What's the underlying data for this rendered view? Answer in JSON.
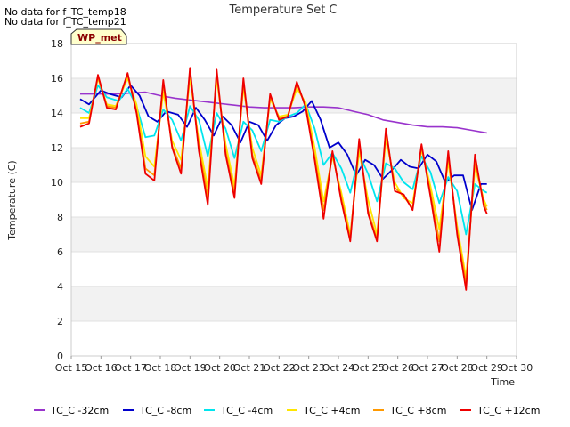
{
  "messages": [
    "No data for f_TC_temp18",
    "No data for f_TC_temp21"
  ],
  "badge": "WP_met",
  "chart_data": {
    "type": "line",
    "title": "Temperature Set C",
    "xlabel": "Time",
    "ylabel": "Temperature (C)",
    "ylim": [
      0,
      18
    ],
    "yticks": [
      0,
      2,
      4,
      6,
      8,
      10,
      12,
      14,
      16,
      18
    ],
    "xlim": [
      15,
      30
    ],
    "xticks": [
      15,
      16,
      17,
      18,
      19,
      20,
      21,
      22,
      23,
      24,
      25,
      26,
      27,
      28,
      29,
      30
    ],
    "xtick_labels": [
      "Oct 15",
      "Oct 16",
      "Oct 17",
      "Oct 18",
      "Oct 19",
      "Oct 20",
      "Oct 21",
      "Oct 22",
      "Oct 23",
      "Oct 24",
      "Oct 25",
      "Oct 26",
      "Oct 27",
      "Oct 28",
      "Oct 29",
      "Oct 30"
    ],
    "grid": "horizontal bands",
    "legend_position": "bottom",
    "series": [
      {
        "name": "TC_C -32cm",
        "color": "#9933cc",
        "x": [
          15.3,
          16,
          16.5,
          17,
          17.5,
          18,
          18.5,
          19,
          19.5,
          20,
          20.5,
          21,
          21.5,
          22,
          22.5,
          23,
          23.5,
          24,
          24.5,
          25,
          25.5,
          26,
          26.5,
          27,
          27.5,
          28,
          28.5,
          29.0
        ],
        "y": [
          15.1,
          15.1,
          15.1,
          15.15,
          15.2,
          15.0,
          14.85,
          14.75,
          14.65,
          14.55,
          14.45,
          14.35,
          14.3,
          14.3,
          14.3,
          14.35,
          14.35,
          14.3,
          14.1,
          13.9,
          13.6,
          13.45,
          13.3,
          13.2,
          13.2,
          13.15,
          13.0,
          12.85
        ]
      },
      {
        "name": "TC_C -8cm",
        "color": "#0000cc",
        "x": [
          15.3,
          15.6,
          16.0,
          16.3,
          16.7,
          17.0,
          17.3,
          17.6,
          17.9,
          18.2,
          18.6,
          18.9,
          19.2,
          19.5,
          19.8,
          20.1,
          20.4,
          20.7,
          21.0,
          21.3,
          21.6,
          21.9,
          22.2,
          22.5,
          22.8,
          23.1,
          23.4,
          23.7,
          24.0,
          24.3,
          24.6,
          24.9,
          25.2,
          25.5,
          25.8,
          26.1,
          26.4,
          26.7,
          27.0,
          27.3,
          27.6,
          27.9,
          28.2,
          28.5,
          28.8,
          29.0
        ],
        "y": [
          14.8,
          14.5,
          15.3,
          15.1,
          14.9,
          15.6,
          15.0,
          13.8,
          13.5,
          14.1,
          13.9,
          13.2,
          14.3,
          13.6,
          12.7,
          13.8,
          13.3,
          12.3,
          13.5,
          13.3,
          12.4,
          13.3,
          13.7,
          13.8,
          14.1,
          14.7,
          13.6,
          12.0,
          12.3,
          11.6,
          10.4,
          11.3,
          11.0,
          10.2,
          10.7,
          11.3,
          10.9,
          10.8,
          11.6,
          11.2,
          10.0,
          10.4,
          10.4,
          8.4,
          9.9,
          9.9
        ]
      },
      {
        "name": "TC_C -4cm",
        "color": "#00e5ee",
        "x": [
          15.3,
          15.6,
          15.9,
          16.2,
          16.6,
          16.9,
          17.2,
          17.5,
          17.8,
          18.1,
          18.4,
          18.7,
          19.0,
          19.3,
          19.6,
          19.9,
          20.2,
          20.5,
          20.8,
          21.1,
          21.4,
          21.7,
          22.0,
          22.3,
          22.6,
          22.9,
          23.2,
          23.5,
          23.8,
          24.1,
          24.4,
          24.7,
          25.0,
          25.3,
          25.6,
          25.9,
          26.2,
          26.5,
          26.8,
          27.1,
          27.4,
          27.7,
          28.0,
          28.3,
          28.6,
          28.9,
          29.0
        ],
        "y": [
          14.3,
          14.0,
          15.6,
          14.9,
          14.7,
          15.4,
          14.4,
          12.6,
          12.7,
          14.2,
          13.6,
          12.4,
          14.4,
          13.6,
          11.5,
          14.0,
          13.1,
          11.4,
          13.5,
          13.0,
          11.8,
          13.6,
          13.5,
          13.8,
          14.0,
          14.5,
          13.1,
          11.0,
          11.7,
          10.8,
          9.4,
          11.6,
          10.5,
          8.9,
          11.1,
          10.8,
          10.0,
          9.6,
          11.5,
          10.6,
          8.8,
          10.3,
          9.5,
          7.0,
          9.9,
          9.5,
          9.4
        ]
      },
      {
        "name": "TC_C +4cm",
        "color": "#ffe600",
        "x": [
          15.3,
          15.6,
          15.9,
          16.2,
          16.5,
          16.9,
          17.2,
          17.5,
          17.8,
          18.1,
          18.4,
          18.7,
          19.0,
          19.3,
          19.6,
          19.9,
          20.2,
          20.5,
          20.8,
          21.1,
          21.4,
          21.7,
          22.0,
          22.3,
          22.6,
          22.9,
          23.2,
          23.5,
          23.8,
          24.1,
          24.4,
          24.7,
          25.0,
          25.3,
          25.6,
          25.9,
          26.2,
          26.5,
          26.8,
          27.1,
          27.4,
          27.7,
          28.0,
          28.3,
          28.6,
          28.9,
          29.0
        ],
        "y": [
          13.7,
          13.7,
          16.0,
          14.5,
          14.4,
          16.0,
          14.5,
          11.5,
          10.9,
          15.2,
          12.4,
          11.3,
          16.0,
          12.4,
          9.7,
          16.0,
          12.2,
          9.8,
          15.5,
          12.0,
          10.4,
          14.8,
          13.8,
          13.9,
          15.4,
          14.6,
          12.0,
          8.9,
          11.5,
          9.4,
          7.0,
          11.8,
          9.0,
          7.0,
          12.5,
          10.0,
          9.1,
          8.8,
          11.9,
          9.8,
          7.3,
          11.2,
          7.5,
          4.5,
          10.9,
          9.0,
          8.6
        ]
      },
      {
        "name": "TC_C +8cm",
        "color": "#ff9900",
        "x": [
          15.3,
          15.6,
          15.9,
          16.2,
          16.5,
          16.9,
          17.2,
          17.5,
          17.8,
          18.1,
          18.4,
          18.7,
          19.0,
          19.3,
          19.6,
          19.9,
          20.2,
          20.5,
          20.8,
          21.1,
          21.4,
          21.7,
          22.0,
          22.3,
          22.6,
          22.9,
          23.2,
          23.5,
          23.8,
          24.1,
          24.4,
          24.7,
          25.0,
          25.3,
          25.6,
          25.9,
          26.2,
          26.5,
          26.8,
          27.1,
          27.4,
          27.7,
          28.0,
          28.3,
          28.6,
          28.9,
          29.0
        ],
        "y": [
          13.4,
          13.5,
          16.1,
          14.4,
          14.3,
          16.2,
          14.1,
          10.8,
          10.4,
          15.7,
          12.1,
          10.8,
          16.4,
          12.0,
          9.2,
          16.3,
          11.8,
          9.4,
          15.8,
          11.6,
          10.1,
          15.0,
          13.7,
          13.8,
          15.7,
          14.4,
          11.5,
          8.4,
          11.7,
          9.1,
          6.8,
          12.3,
          8.4,
          6.7,
          12.9,
          9.7,
          9.2,
          8.5,
          12.1,
          9.4,
          6.6,
          11.6,
          7.2,
          4.2,
          11.3,
          8.8,
          8.4
        ]
      },
      {
        "name": "TC_C +12cm",
        "color": "#ee0000",
        "x": [
          15.3,
          15.6,
          15.9,
          16.2,
          16.5,
          16.9,
          17.2,
          17.5,
          17.8,
          18.1,
          18.4,
          18.7,
          19.0,
          19.3,
          19.6,
          19.9,
          20.2,
          20.5,
          20.8,
          21.1,
          21.4,
          21.7,
          22.0,
          22.3,
          22.6,
          22.9,
          23.2,
          23.5,
          23.8,
          24.1,
          24.4,
          24.7,
          25.0,
          25.3,
          25.6,
          25.9,
          26.2,
          26.5,
          26.8,
          27.1,
          27.4,
          27.7,
          28.0,
          28.3,
          28.6,
          28.9,
          29.0
        ],
        "y": [
          13.2,
          13.4,
          16.2,
          14.3,
          14.2,
          16.3,
          14.0,
          10.5,
          10.1,
          15.9,
          12.0,
          10.5,
          16.6,
          11.8,
          8.7,
          16.5,
          11.6,
          9.1,
          16.0,
          11.4,
          9.9,
          15.1,
          13.6,
          13.8,
          15.8,
          14.3,
          11.3,
          7.9,
          11.8,
          8.9,
          6.6,
          12.5,
          8.2,
          6.6,
          13.1,
          9.5,
          9.3,
          8.4,
          12.2,
          9.2,
          6.0,
          11.8,
          7.0,
          3.8,
          11.6,
          8.6,
          8.2
        ]
      }
    ]
  }
}
